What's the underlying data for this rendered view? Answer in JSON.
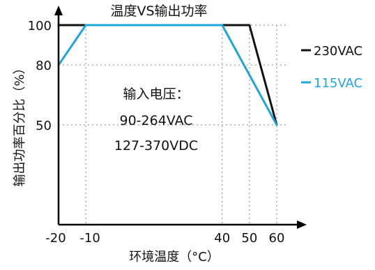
{
  "chart_data": {
    "type": "line",
    "title": "温度VS输出功率",
    "xlabel": "环境温度（°C）",
    "ylabel": "输出功率百分比（%）",
    "x_ticks": [
      -20,
      -10,
      40,
      50,
      60
    ],
    "x_tick_labels": [
      "-20",
      "-10",
      "40",
      "50",
      "60"
    ],
    "y_ticks": [
      100,
      80,
      50
    ],
    "y_tick_labels": [
      "100",
      "80",
      "50"
    ],
    "xlim": [
      -20,
      60
    ],
    "ylim": [
      0,
      100
    ],
    "grid": true,
    "legend_position": "right",
    "series": [
      {
        "name": "230VAC",
        "color": "#111111",
        "x": [
          -20,
          50,
          60
        ],
        "y": [
          100,
          100,
          50
        ]
      },
      {
        "name": "115VAC",
        "color": "#1ea5dc",
        "x": [
          -20,
          -10,
          40,
          60
        ],
        "y": [
          80,
          100,
          100,
          50
        ]
      }
    ],
    "annotations": [
      "输入电压：",
      "90-264VAC",
      "127-370VDC"
    ]
  }
}
